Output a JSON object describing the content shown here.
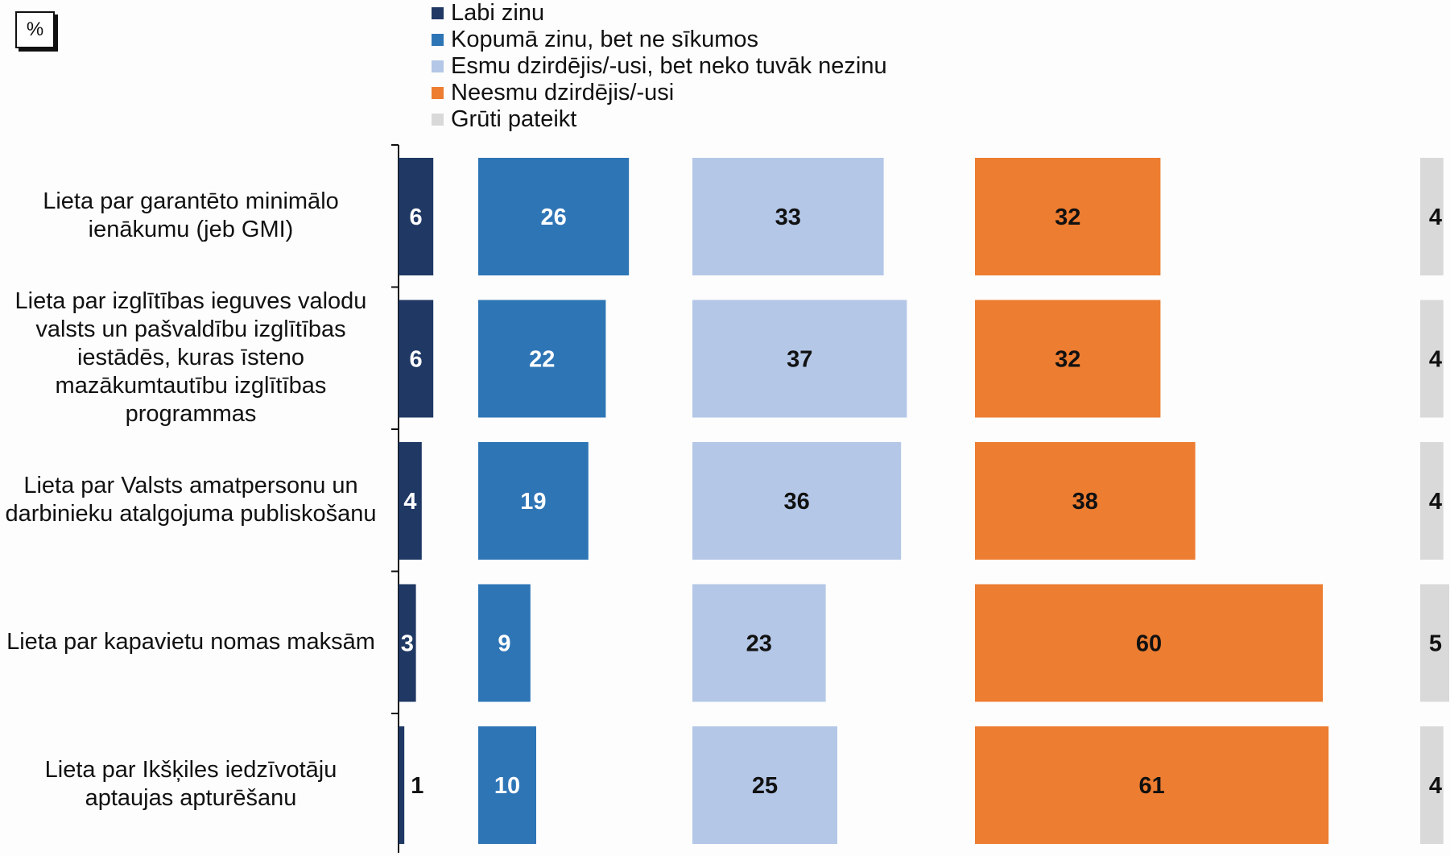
{
  "unit_label": "%",
  "chart_data": {
    "type": "bar",
    "layout": "grouped-columns",
    "categories": [
      "Lieta par garantēto minimālo ienākumu (jeb GMI)",
      "Lieta par izglītības ieguves valodu valsts un pašvaldību izglītības iestādēs, kuras īsteno mazākumtautību izglītības programmas",
      "Lieta par Valsts amatpersonu un darbinieku atalgojuma publiskošanu",
      "Lieta par kapavietu nomas maksām",
      "Lieta par Ikšķiles iedzīvotāju aptaujas apturēšanu"
    ],
    "series": [
      {
        "name": "Labi zinu",
        "color": "#1f3864",
        "label_color": "#ffffff",
        "values": [
          6,
          6,
          4,
          3,
          1
        ]
      },
      {
        "name": "Kopumā zinu, bet ne sīkumos",
        "color": "#2e75b6",
        "label_color": "#ffffff",
        "values": [
          26,
          22,
          19,
          9,
          10
        ]
      },
      {
        "name": "Esmu dzirdējis/-usi, bet neko tuvāk nezinu",
        "color": "#b4c7e7",
        "label_color": "#111111",
        "values": [
          33,
          37,
          36,
          23,
          25
        ]
      },
      {
        "name": "Neesmu dzirdējis/-usi",
        "color": "#ed7d31",
        "label_color": "#111111",
        "values": [
          32,
          32,
          38,
          60,
          61
        ]
      },
      {
        "name": "Grūti pateikt",
        "color": "#d9d9d9",
        "label_color": "#111111",
        "values": [
          4,
          4,
          4,
          5,
          4
        ]
      }
    ],
    "legend_position": "top",
    "grid": false
  }
}
